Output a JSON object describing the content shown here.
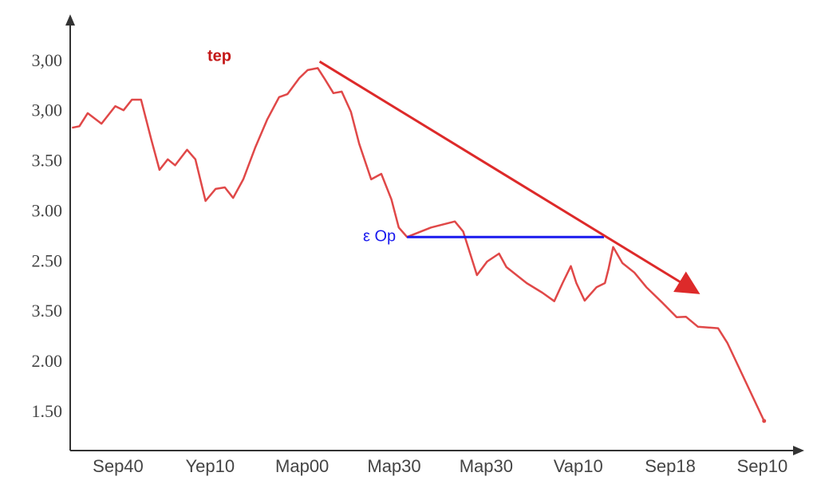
{
  "chart_data": {
    "type": "line",
    "y_labels": [
      "1.50",
      "2.00",
      "3.50",
      "2.50",
      "3.00",
      "3.50",
      "3,00",
      "3,00"
    ],
    "categories": [
      "Sep40",
      "Yep10",
      "Map00",
      "Map30",
      "Map30",
      "Vap10",
      "Sep18",
      "Sep10"
    ],
    "xlim": [
      -0.52,
      7.43
    ],
    "ylim": [
      -0.75,
      7.92
    ],
    "series": [
      {
        "color": "#e04848",
        "x": [
          -0.5,
          -0.42,
          -0.33,
          -0.18,
          -0.03,
          0.06,
          0.15,
          0.25,
          0.36,
          0.45,
          0.54,
          0.62,
          0.75,
          0.84,
          0.95,
          1.06,
          1.16,
          1.25,
          1.36,
          1.49,
          1.62,
          1.75,
          1.84,
          1.97,
          2.06,
          2.17,
          2.25,
          2.34,
          2.43,
          2.53,
          2.62,
          2.75,
          2.86,
          2.97,
          3.05,
          3.14,
          3.4,
          3.66,
          3.75,
          3.9,
          4.01,
          4.14,
          4.22,
          4.44,
          4.61,
          4.74,
          4.83,
          4.92,
          4.98,
          5.07,
          5.2,
          5.29,
          5.33,
          5.38,
          5.48,
          5.61,
          5.74,
          5.92,
          6.07,
          6.17,
          6.3,
          6.52,
          6.62,
          7.02
        ],
        "values": [
          5.69,
          5.72,
          5.98,
          5.77,
          6.12,
          6.04,
          6.25,
          6.25,
          5.46,
          4.85,
          5.06,
          4.94,
          5.25,
          5.06,
          4.23,
          4.47,
          4.5,
          4.29,
          4.66,
          5.29,
          5.85,
          6.3,
          6.36,
          6.68,
          6.84,
          6.88,
          6.65,
          6.38,
          6.41,
          6.01,
          5.37,
          4.66,
          4.77,
          4.26,
          3.7,
          3.51,
          3.7,
          3.82,
          3.62,
          2.75,
          3.02,
          3.18,
          2.91,
          2.59,
          2.4,
          2.23,
          2.59,
          2.93,
          2.59,
          2.24,
          2.51,
          2.59,
          2.88,
          3.31,
          2.99,
          2.8,
          2.51,
          2.19,
          1.91,
          1.92,
          1.72,
          1.69,
          1.4,
          -0.16
        ]
      }
    ],
    "trend_line": {
      "text": "tep",
      "color": "#dd2a2a",
      "x": [
        2.19,
        6.28
      ],
      "y": [
        7.01,
        2.42
      ]
    },
    "level_line": {
      "text": "ε Op",
      "color": "#1a1aee",
      "x": [
        3.14,
        5.28
      ],
      "y": [
        3.51,
        3.51
      ]
    }
  }
}
